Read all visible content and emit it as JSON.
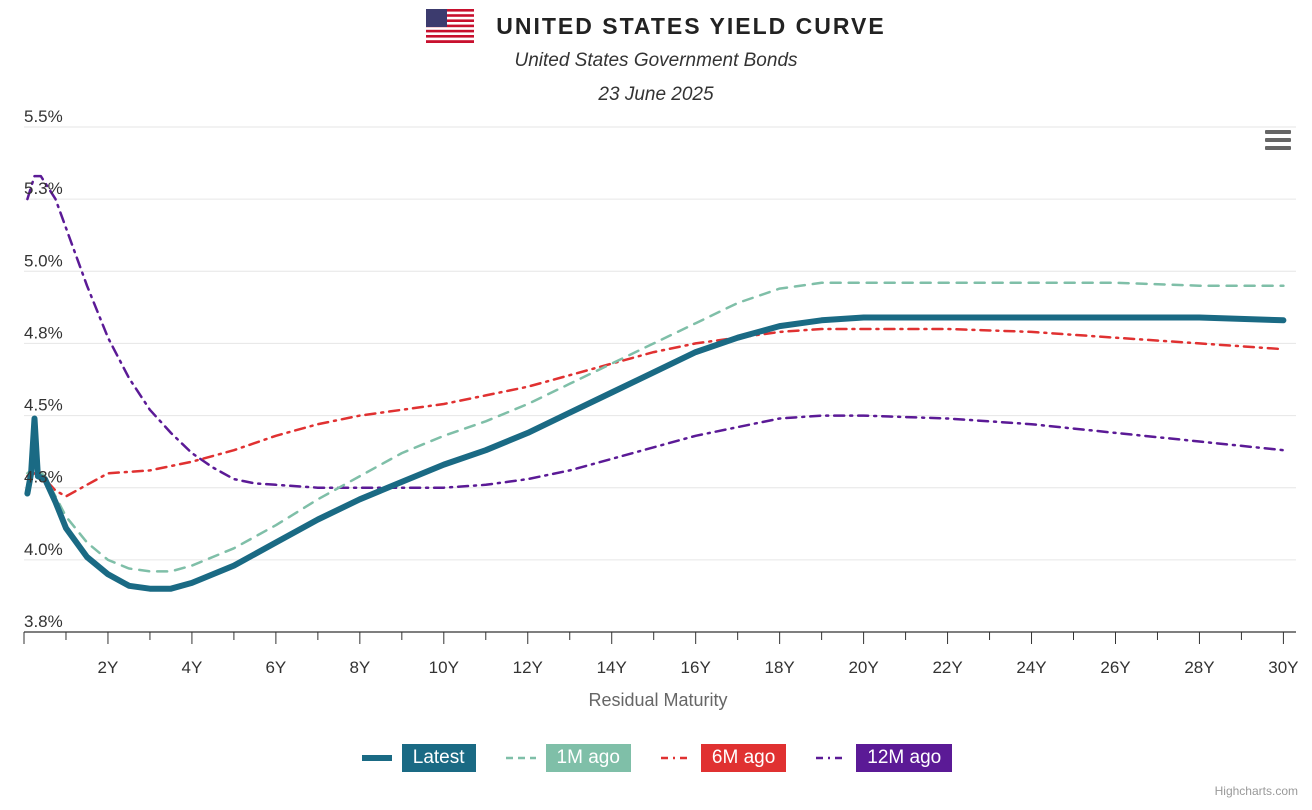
{
  "header": {
    "title": "UNITED STATES YIELD CURVE",
    "subtitle": "United States Government Bonds",
    "date": "23 June 2025"
  },
  "credits": "Highcharts.com",
  "chart_data": {
    "type": "line",
    "title": "UNITED STATES YIELD CURVE",
    "subtitle": "United States Government Bonds",
    "xlabel": "Residual Maturity",
    "ylabel": "",
    "x_unit": "years",
    "xlim": [
      0,
      30.3
    ],
    "ylim": [
      3.8,
      5.55
    ],
    "x_ticks": [
      2,
      4,
      6,
      8,
      10,
      12,
      14,
      16,
      18,
      20,
      22,
      24,
      26,
      28,
      30
    ],
    "x_tick_labels": [
      "2Y",
      "4Y",
      "6Y",
      "8Y",
      "10Y",
      "12Y",
      "14Y",
      "16Y",
      "18Y",
      "20Y",
      "22Y",
      "24Y",
      "26Y",
      "28Y",
      "30Y"
    ],
    "y_ticks": [
      3.8,
      4.05,
      4.3,
      4.55,
      4.8,
      5.05,
      5.3,
      5.55
    ],
    "y_tick_labels": [
      "3.8%",
      "4.0%",
      "4.3%",
      "4.5%",
      "4.8%",
      "5.0%",
      "5.3%",
      "5.5%"
    ],
    "grid": true,
    "legend_position": "bottom-center",
    "series": [
      {
        "name": "Latest",
        "color": "#1a6a84",
        "dash": "solid",
        "width": 6,
        "points": [
          [
            0.08,
            4.28
          ],
          [
            0.17,
            4.35
          ],
          [
            0.25,
            4.54
          ],
          [
            0.33,
            4.34
          ],
          [
            0.5,
            4.33
          ],
          [
            0.75,
            4.25
          ],
          [
            1,
            4.16
          ],
          [
            1.5,
            4.06
          ],
          [
            2,
            4.0
          ],
          [
            2.5,
            3.96
          ],
          [
            3,
            3.95
          ],
          [
            3.5,
            3.95
          ],
          [
            4,
            3.97
          ],
          [
            5,
            4.03
          ],
          [
            6,
            4.11
          ],
          [
            7,
            4.19
          ],
          [
            8,
            4.26
          ],
          [
            9,
            4.32
          ],
          [
            10,
            4.38
          ],
          [
            11,
            4.43
          ],
          [
            12,
            4.49
          ],
          [
            13,
            4.56
          ],
          [
            14,
            4.63
          ],
          [
            15,
            4.7
          ],
          [
            16,
            4.77
          ],
          [
            17,
            4.82
          ],
          [
            18,
            4.86
          ],
          [
            19,
            4.88
          ],
          [
            20,
            4.89
          ],
          [
            22,
            4.89
          ],
          [
            24,
            4.89
          ],
          [
            26,
            4.89
          ],
          [
            28,
            4.89
          ],
          [
            30,
            4.88
          ]
        ]
      },
      {
        "name": "1M ago",
        "color": "#7fbfa8",
        "dash": "dashed",
        "width": 2.5,
        "points": [
          [
            0.08,
            4.35
          ],
          [
            0.25,
            4.37
          ],
          [
            0.5,
            4.34
          ],
          [
            0.75,
            4.27
          ],
          [
            1,
            4.2
          ],
          [
            1.5,
            4.11
          ],
          [
            2,
            4.05
          ],
          [
            2.5,
            4.02
          ],
          [
            3,
            4.01
          ],
          [
            3.5,
            4.01
          ],
          [
            4,
            4.03
          ],
          [
            5,
            4.09
          ],
          [
            6,
            4.17
          ],
          [
            7,
            4.26
          ],
          [
            8,
            4.34
          ],
          [
            9,
            4.42
          ],
          [
            10,
            4.48
          ],
          [
            11,
            4.53
          ],
          [
            12,
            4.59
          ],
          [
            13,
            4.66
          ],
          [
            14,
            4.73
          ],
          [
            15,
            4.8
          ],
          [
            16,
            4.87
          ],
          [
            17,
            4.94
          ],
          [
            18,
            4.99
          ],
          [
            19,
            5.01
          ],
          [
            20,
            5.01
          ],
          [
            22,
            5.01
          ],
          [
            24,
            5.01
          ],
          [
            26,
            5.01
          ],
          [
            28,
            5.0
          ],
          [
            30,
            5.0
          ]
        ]
      },
      {
        "name": "6M ago",
        "color": "#e03131",
        "dash": "dashdot",
        "width": 2.5,
        "points": [
          [
            0.08,
            4.34
          ],
          [
            0.25,
            4.35
          ],
          [
            0.5,
            4.33
          ],
          [
            0.75,
            4.29
          ],
          [
            1,
            4.27
          ],
          [
            1.5,
            4.31
          ],
          [
            2,
            4.35
          ],
          [
            3,
            4.36
          ],
          [
            4,
            4.39
          ],
          [
            5,
            4.43
          ],
          [
            6,
            4.48
          ],
          [
            7,
            4.52
          ],
          [
            8,
            4.55
          ],
          [
            9,
            4.57
          ],
          [
            10,
            4.59
          ],
          [
            11,
            4.62
          ],
          [
            12,
            4.65
          ],
          [
            13,
            4.69
          ],
          [
            14,
            4.73
          ],
          [
            15,
            4.77
          ],
          [
            16,
            4.8
          ],
          [
            17,
            4.82
          ],
          [
            18,
            4.84
          ],
          [
            19,
            4.85
          ],
          [
            20,
            4.85
          ],
          [
            22,
            4.85
          ],
          [
            24,
            4.84
          ],
          [
            26,
            4.82
          ],
          [
            28,
            4.8
          ],
          [
            30,
            4.78
          ]
        ]
      },
      {
        "name": "12M ago",
        "color": "#5b1a96",
        "dash": "dashdot",
        "width": 2.5,
        "points": [
          [
            0.08,
            5.3
          ],
          [
            0.25,
            5.38
          ],
          [
            0.4,
            5.38
          ],
          [
            0.75,
            5.3
          ],
          [
            1,
            5.2
          ],
          [
            1.5,
            5.0
          ],
          [
            2,
            4.82
          ],
          [
            2.5,
            4.68
          ],
          [
            3,
            4.57
          ],
          [
            3.5,
            4.49
          ],
          [
            4,
            4.42
          ],
          [
            4.5,
            4.37
          ],
          [
            5,
            4.33
          ],
          [
            5.5,
            4.315
          ],
          [
            6,
            4.31
          ],
          [
            7,
            4.3
          ],
          [
            8,
            4.3
          ],
          [
            9,
            4.3
          ],
          [
            10,
            4.3
          ],
          [
            11,
            4.31
          ],
          [
            12,
            4.33
          ],
          [
            13,
            4.36
          ],
          [
            14,
            4.4
          ],
          [
            15,
            4.44
          ],
          [
            16,
            4.48
          ],
          [
            17,
            4.51
          ],
          [
            18,
            4.54
          ],
          [
            19,
            4.55
          ],
          [
            20,
            4.55
          ],
          [
            22,
            4.54
          ],
          [
            24,
            4.52
          ],
          [
            26,
            4.49
          ],
          [
            28,
            4.46
          ],
          [
            30,
            4.43
          ]
        ]
      }
    ]
  }
}
